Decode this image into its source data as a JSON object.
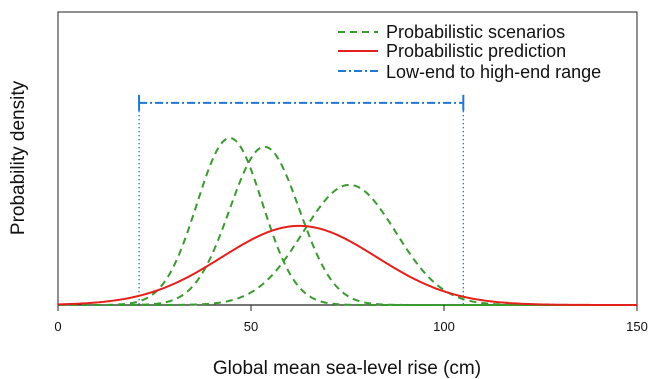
{
  "chart_data": {
    "type": "line",
    "xlabel": "Global mean sea-level rise (cm)",
    "ylabel": "Probability density",
    "xlim": [
      0,
      150
    ],
    "ylim": [
      0,
      1.0
    ],
    "x_ticks": [
      0,
      50,
      100,
      150
    ],
    "y_ticks_labeled": false,
    "grid": false,
    "legend_position": "top-right",
    "series": [
      {
        "name": "Probabilistic scenarios",
        "style": "dashed",
        "color": "#3a9a2f",
        "curves": [
          {
            "mean": 44.5,
            "sd": 8.5,
            "peak": 0.57
          },
          {
            "mean": 53.5,
            "sd": 9.0,
            "peak": 0.54
          },
          {
            "mean": 75.5,
            "sd": 12.0,
            "peak": 0.41
          }
        ]
      },
      {
        "name": "Probabilistic prediction",
        "style": "solid",
        "color": "#e3201b",
        "curves": [
          {
            "mean": 62.5,
            "sd": 20.0,
            "peak": 0.27
          }
        ]
      },
      {
        "name": "Low-end to high-end range",
        "style": "dashdot",
        "color": "#1f78d1",
        "range": [
          21,
          105
        ],
        "level": 0.69
      }
    ]
  }
}
